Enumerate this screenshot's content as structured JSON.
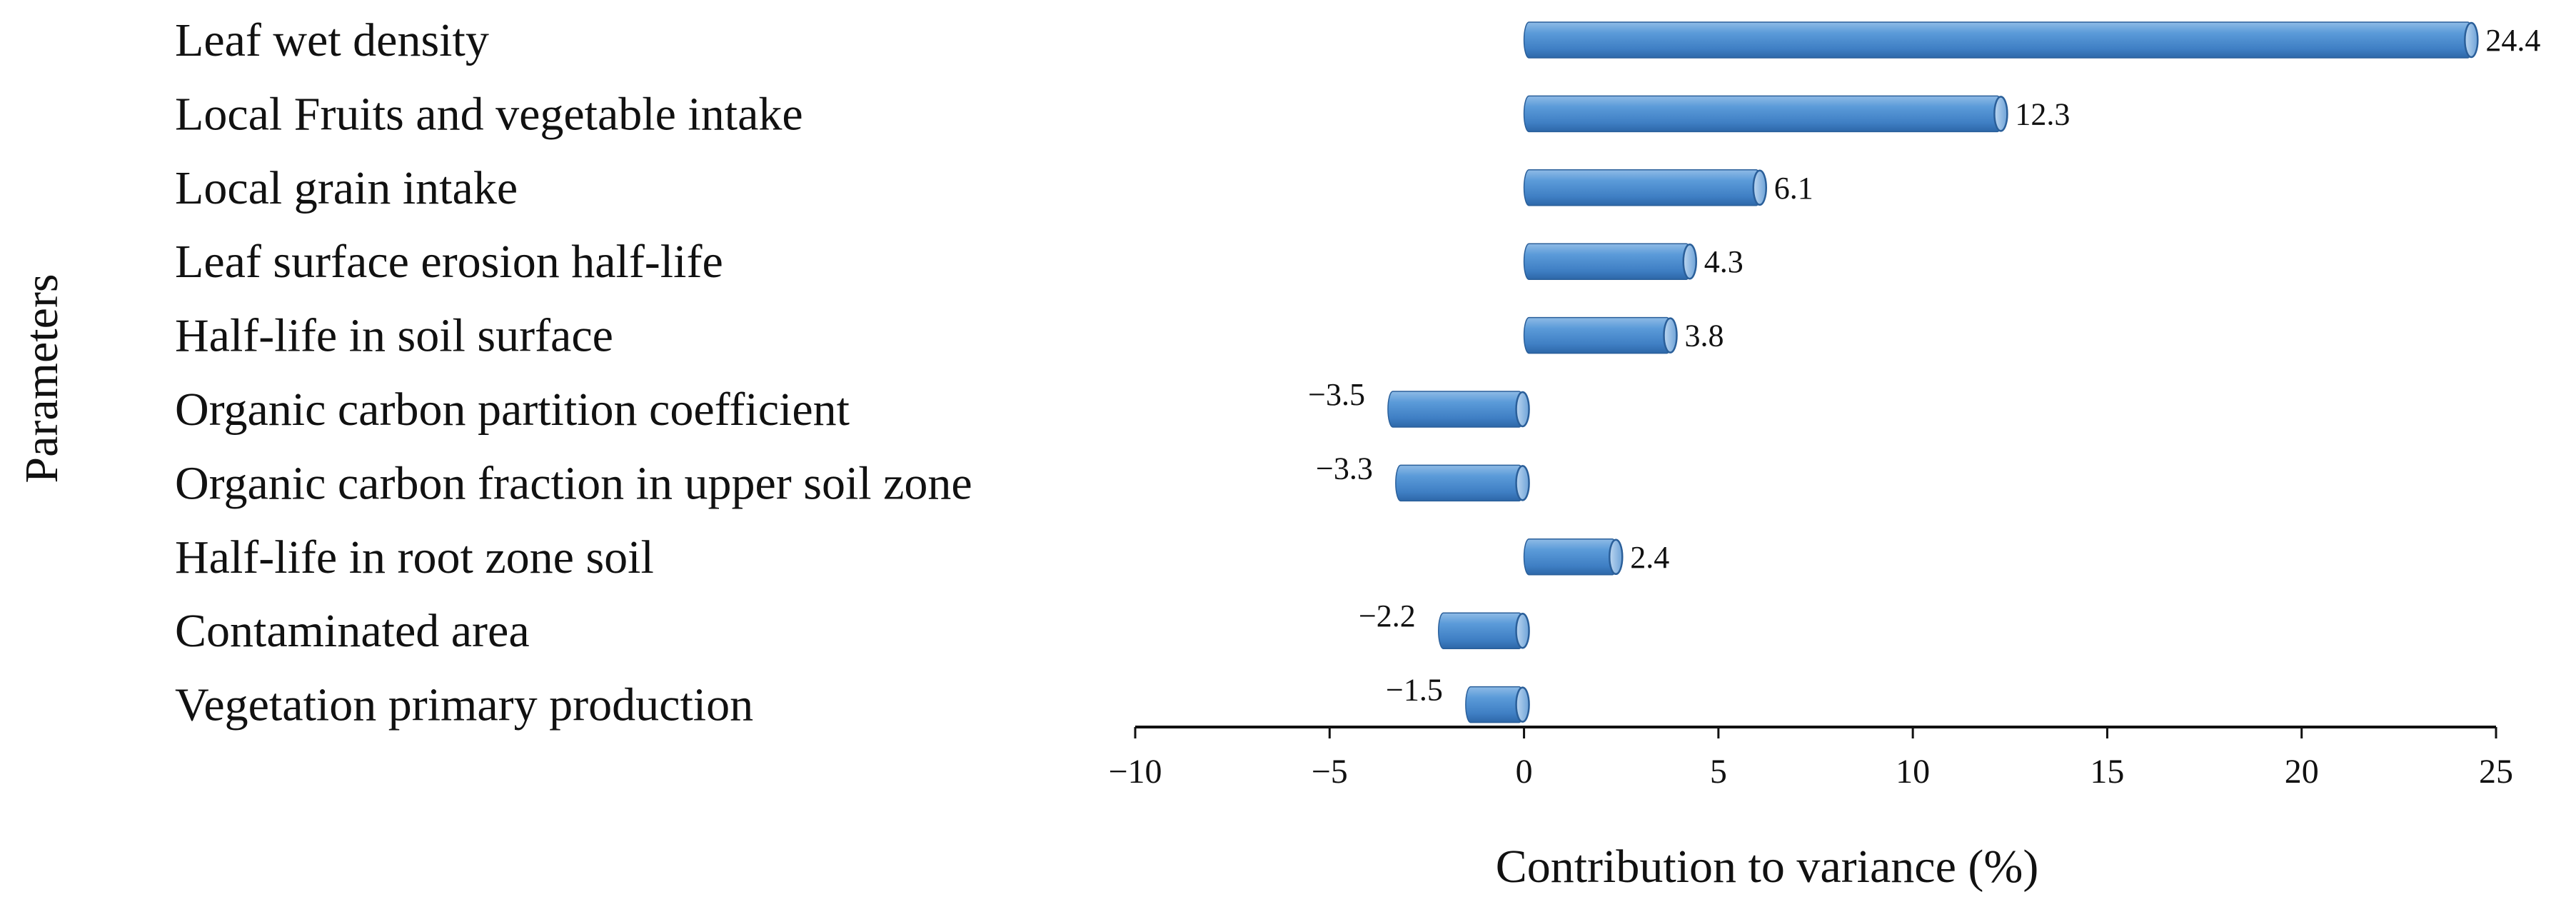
{
  "chart_data": {
    "type": "bar",
    "orientation": "horizontal",
    "title": "",
    "xlabel": "Contribution to variance (%)",
    "ylabel": "Parameters",
    "xlim": [
      -10,
      25
    ],
    "xticks": [
      -10,
      -5,
      0,
      5,
      10,
      15,
      20,
      25
    ],
    "xtick_labels": [
      "−10",
      "−5",
      "0",
      "5",
      "10",
      "15",
      "20",
      "25"
    ],
    "grid": false,
    "legend": "none",
    "bar_color": "#4f8fd0",
    "categories": [
      "Leaf wet density",
      "Local Fruits and vegetable intake",
      "Local grain intake",
      "Leaf surface erosion half-life",
      "Half-life in soil surface",
      "Organic carbon partition coefficient",
      "Organic carbon fraction in upper soil zone",
      "Half-life in root zone soil",
      "Contaminated area",
      "Vegetation primary production"
    ],
    "values": [
      24.4,
      12.3,
      6.1,
      4.3,
      3.8,
      -3.5,
      -3.3,
      2.4,
      -2.2,
      -1.5
    ],
    "value_labels": [
      "24.4",
      "12.3",
      "6.1",
      "4.3",
      "3.8",
      "−3.5",
      "−3.3",
      "2.4",
      "−2.2",
      "−1.5"
    ]
  }
}
